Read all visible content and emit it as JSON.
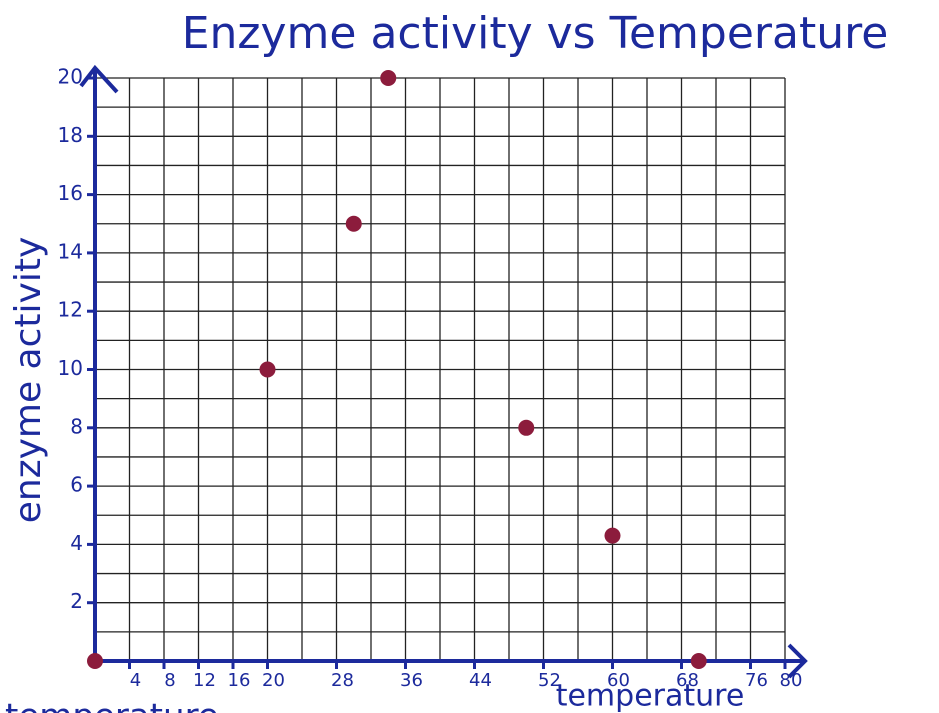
{
  "chart_data": {
    "type": "scatter",
    "title": "Enzyme activity vs Temperature",
    "x_label": "temperature",
    "y_label": "enzyme activity",
    "annotation": "temperature",
    "x": [
      0,
      20,
      30,
      34,
      50,
      60,
      70
    ],
    "values": [
      0,
      10,
      15,
      20,
      8,
      4.3,
      0
    ],
    "color": "#8c1c3c",
    "axis_color": "#1c2a9c",
    "xlim": [
      0,
      80
    ],
    "ylim": [
      0,
      20
    ],
    "xticks": [
      4,
      8,
      12,
      16,
      20,
      28,
      36,
      44,
      52,
      60,
      68,
      76,
      80
    ],
    "yticks": [
      2,
      4,
      6,
      8,
      10,
      12,
      14,
      16,
      18,
      20
    ],
    "grid": true
  }
}
